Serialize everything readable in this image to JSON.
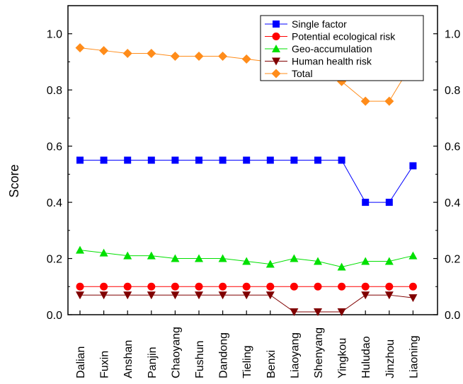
{
  "chart_data": {
    "type": "line",
    "ylabel": "Score",
    "ylim": [
      0,
      1.1
    ],
    "yticks": [
      "0.0",
      "0.2",
      "0.4",
      "0.6",
      "0.8",
      "1.0"
    ],
    "categories": [
      "Dalian",
      "Fuxin",
      "Anshan",
      "Panjin",
      "Chaoyang",
      "Fushun",
      "Dandong",
      "Tieling",
      "Benxi",
      "Liaoyang",
      "Shenyang",
      "Yingkou",
      "Huludao",
      "Jinzhou",
      "Liaoning"
    ],
    "legend_position": "top-right",
    "grid": false,
    "series": [
      {
        "name": "Single factor",
        "color": "#0000ff",
        "marker": "square",
        "values": [
          0.55,
          0.55,
          0.55,
          0.55,
          0.55,
          0.55,
          0.55,
          0.55,
          0.55,
          0.55,
          0.55,
          0.55,
          0.4,
          0.4,
          0.53
        ]
      },
      {
        "name": "Potential ecological risk",
        "color": "#ff0000",
        "marker": "circle",
        "values": [
          0.1,
          0.1,
          0.1,
          0.1,
          0.1,
          0.1,
          0.1,
          0.1,
          0.1,
          0.1,
          0.1,
          0.1,
          0.1,
          0.1,
          0.1
        ]
      },
      {
        "name": "Geo-accumulation",
        "color": "#00e000",
        "marker": "triangle-up",
        "values": [
          0.23,
          0.22,
          0.21,
          0.21,
          0.2,
          0.2,
          0.2,
          0.19,
          0.18,
          0.2,
          0.19,
          0.17,
          0.19,
          0.19,
          0.21
        ]
      },
      {
        "name": "Human health risk",
        "color": "#800000",
        "marker": "triangle-down",
        "values": [
          0.07,
          0.07,
          0.07,
          0.07,
          0.07,
          0.07,
          0.07,
          0.07,
          0.07,
          0.01,
          0.01,
          0.01,
          0.07,
          0.07,
          0.06
        ]
      },
      {
        "name": "Total",
        "color": "#ff8c1a",
        "marker": "diamond",
        "values": [
          0.95,
          0.94,
          0.93,
          0.93,
          0.92,
          0.92,
          0.92,
          0.91,
          0.9,
          0.86,
          0.85,
          0.83,
          0.76,
          0.76,
          0.9
        ]
      }
    ]
  }
}
